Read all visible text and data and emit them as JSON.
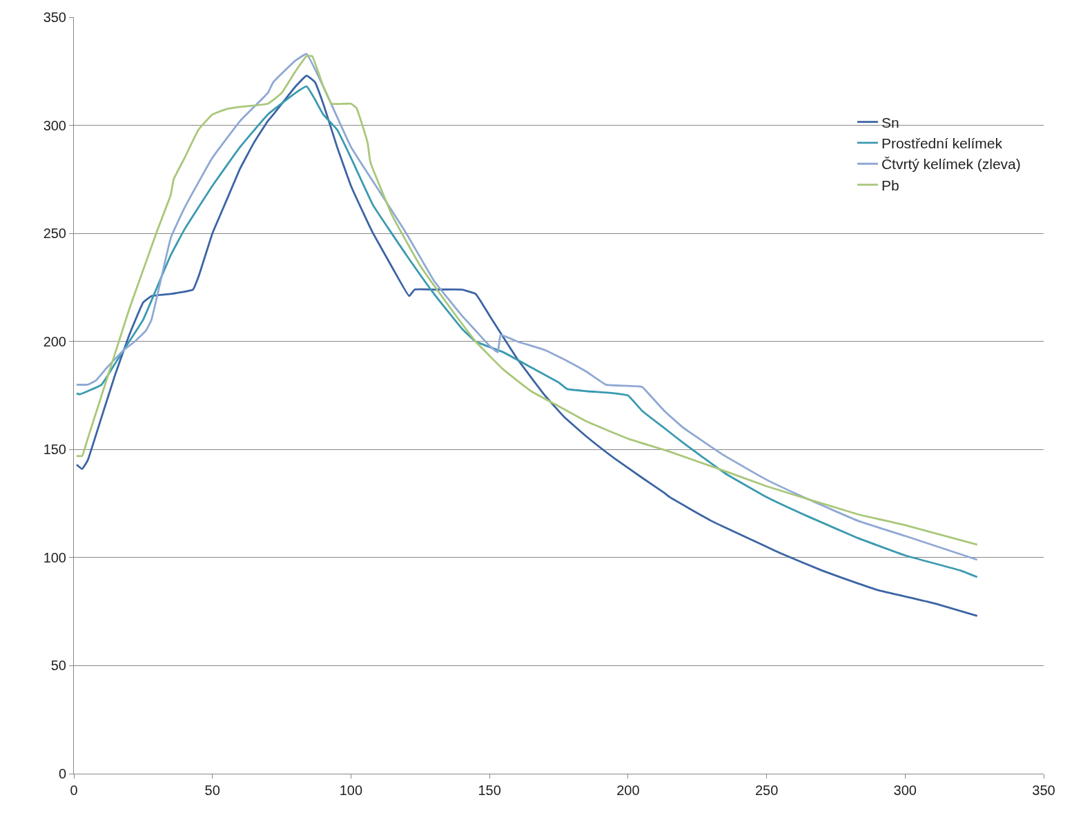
{
  "chart_data": {
    "type": "line",
    "xlim": [
      0,
      350
    ],
    "ylim": [
      0,
      350
    ],
    "xticks": [
      0,
      50,
      100,
      150,
      200,
      250,
      300,
      350
    ],
    "yticks": [
      0,
      50,
      100,
      150,
      200,
      250,
      300,
      350
    ],
    "grid": "y",
    "legend": "top right",
    "marker": "none",
    "line_style": "solid",
    "series": [
      {
        "name": "Sn",
        "color": "#3c64a4",
        "x": [
          1,
          3,
          5,
          10,
          15,
          20,
          25,
          28,
          35,
          43,
          45,
          50,
          55,
          60,
          65,
          70,
          72,
          80,
          84,
          87,
          90,
          95,
          100,
          105,
          108,
          115,
          121,
          123,
          130,
          140,
          145,
          150,
          160,
          170,
          177,
          185,
          195,
          205,
          213,
          215,
          230,
          250,
          255,
          270,
          283,
          290,
          310,
          326
        ],
        "values": [
          143,
          141,
          145,
          165,
          185,
          203,
          218,
          221,
          222,
          224,
          230,
          250,
          265,
          280,
          292,
          302,
          305,
          318,
          323,
          320,
          310,
          290,
          272,
          258,
          250,
          234,
          221,
          224,
          224,
          224,
          222,
          212,
          192,
          175,
          165,
          156,
          146,
          137,
          130,
          128,
          117,
          105,
          102,
          94,
          88,
          85,
          79,
          73
        ]
      },
      {
        "name": "Prostřední kelímek",
        "color": "#3a9ab0",
        "x": [
          1,
          2,
          5,
          10,
          15,
          20,
          25,
          30,
          35,
          40,
          50,
          60,
          70,
          80,
          84,
          87,
          90,
          95,
          100,
          108,
          120,
          130,
          140,
          145,
          155,
          165,
          175,
          178,
          185,
          195,
          200,
          205,
          213,
          220,
          235,
          250,
          265,
          283,
          300,
          320,
          326
        ],
        "values": [
          176,
          175.5,
          177,
          180,
          190,
          200,
          210,
          225,
          240,
          252,
          272,
          290,
          305,
          315,
          318,
          312,
          305,
          298,
          285,
          263,
          240,
          222,
          206,
          200,
          195,
          188,
          181,
          178,
          177,
          176,
          175,
          168,
          160,
          153,
          139,
          128,
          119,
          109,
          101,
          94,
          91
        ]
      },
      {
        "name": "Čtvrtý kelímek (zleva)",
        "color": "#8fa8d4",
        "x": [
          1,
          5,
          8,
          12,
          18,
          22,
          26,
          28,
          35,
          40,
          50,
          60,
          70,
          72,
          80,
          84,
          90,
          100,
          110,
          120,
          130,
          140,
          145,
          150,
          153,
          154,
          160,
          170,
          178,
          185,
          192,
          205,
          208,
          213,
          220,
          235,
          250,
          265,
          283,
          300,
          326
        ],
        "values": [
          180,
          180,
          182,
          188,
          196,
          200,
          205,
          210,
          248,
          262,
          285,
          302,
          315,
          320,
          330,
          333,
          318,
          290,
          270,
          250,
          228,
          212,
          205,
          198,
          195,
          203,
          200,
          196,
          191,
          186,
          180,
          179,
          175,
          168,
          160,
          147,
          136,
          127,
          117,
          110,
          99
        ]
      },
      {
        "name": "Pb",
        "color": "#a9c77a",
        "x": [
          1,
          3,
          5,
          10,
          15,
          20,
          25,
          30,
          35,
          36,
          40,
          45,
          50,
          55,
          60,
          70,
          75,
          80,
          84,
          86,
          90,
          93,
          100,
          102,
          106,
          107,
          115,
          125,
          135,
          145,
          155,
          165,
          175,
          185,
          200,
          215,
          235,
          250,
          283,
          300,
          326
        ],
        "values": [
          147,
          147,
          155,
          175,
          195,
          215,
          233,
          251,
          268,
          275,
          285,
          298,
          305,
          307.5,
          308.5,
          310,
          315,
          325,
          332,
          332,
          318,
          310,
          310,
          308,
          292,
          283,
          258,
          235,
          217,
          200,
          187,
          177,
          170,
          163,
          155,
          149,
          140,
          133,
          120,
          115,
          106
        ]
      }
    ]
  }
}
